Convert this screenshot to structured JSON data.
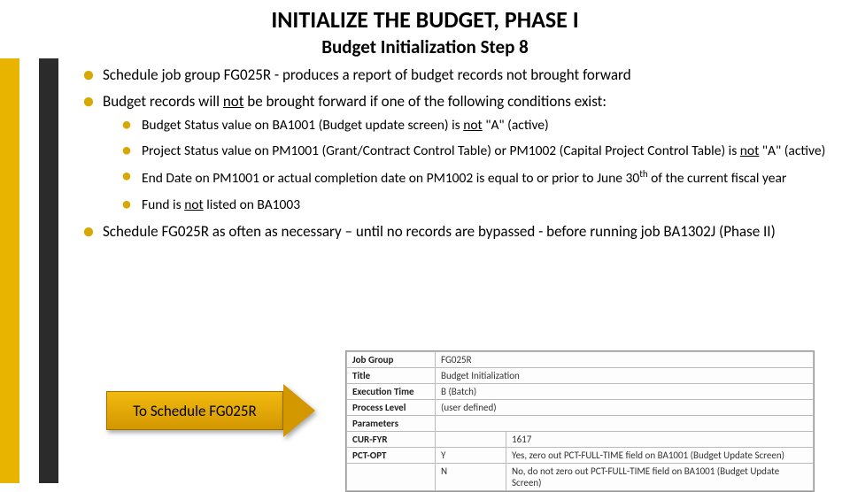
{
  "title": "INITIALIZE THE BUDGET, PHASE I",
  "subtitle": "Budget Initialization Step 8",
  "accent_colors": [
    "#e8b400",
    "#ffffff",
    "#2b2b2b"
  ],
  "bullets": {
    "b1": "Schedule job group FG025R - produces a report of budget records not brought forward",
    "b2_pre": "Budget records will ",
    "b2_not": "not",
    "b2_post": " be brought forward if one of the following conditions exist:",
    "s1_pre": "Budget Status value on BA1001 (Budget update screen) is ",
    "s1_not": "not",
    "s1_post": " \"A\" (active)",
    "s2_pre": "Project Status value on PM1001 (Grant/Contract Control Table) or PM1002 (Capital Project Control Table) is ",
    "s2_not": "not",
    "s2_post": " \"A\" (active)",
    "s3_pre": "End Date on PM1001 or actual completion date on PM1002 is equal to or prior to June 30",
    "s3_sup": "th",
    "s3_post": " of the current fiscal year",
    "s4_pre": "Fund is ",
    "s4_not": "not",
    "s4_post": " listed on BA1003",
    "b3": "Schedule FG025R as often as necessary – until no records are bypassed - before running job BA1302J (Phase II)"
  },
  "arrow_label": "To Schedule FG025R",
  "arrow_fill": "#e2a500",
  "param_table": {
    "rows": [
      [
        "Job Group",
        "FG025R"
      ],
      [
        "Title",
        "Budget Initialization"
      ],
      [
        "Execution Time",
        "B (Batch)"
      ],
      [
        "Process Level",
        "(user defined)"
      ],
      [
        "Parameters",
        ""
      ]
    ],
    "params": [
      [
        "CUR-FYR",
        "",
        "1617"
      ],
      [
        "PCT-OPT",
        "Y",
        "Yes, zero out PCT-FULL-TIME field on BA1001 (Budget Update Screen)"
      ],
      [
        "",
        "N",
        "No, do not zero out PCT-FULL-TIME field on BA1001 (Budget Update Screen)"
      ]
    ]
  }
}
